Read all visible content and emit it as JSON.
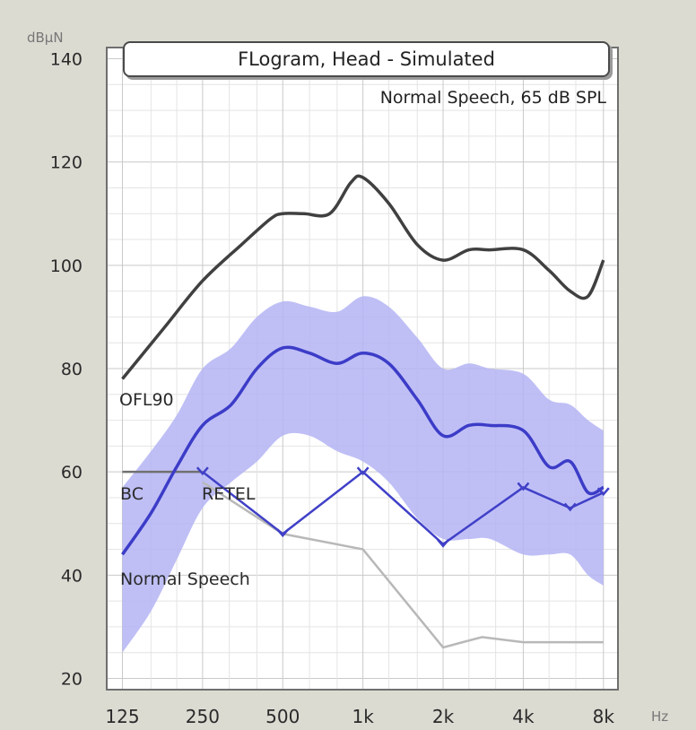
{
  "chart_data": {
    "type": "line",
    "title": "FLogram, Head - Simulated",
    "subtitle": "Normal Speech, 65 dB SPL",
    "ylabel": "dBµN",
    "xlabel": "Hz",
    "x_scale": "log",
    "ylim": [
      18,
      142
    ],
    "xlim": [
      110,
      9000
    ],
    "y_ticks": [
      20,
      40,
      60,
      80,
      100,
      120,
      140
    ],
    "x_ticks": [
      {
        "value": 125,
        "label": "125"
      },
      {
        "value": 250,
        "label": "250"
      },
      {
        "value": 500,
        "label": "500"
      },
      {
        "value": 1000,
        "label": "1k"
      },
      {
        "value": 2000,
        "label": "2k"
      },
      {
        "value": 4000,
        "label": "4k"
      },
      {
        "value": 8000,
        "label": "8k"
      }
    ],
    "grid": true,
    "colors": {
      "ofl90": "#404040",
      "speech_mean": "#3c3cc8",
      "speech_band": "#b4b4f5",
      "retel": "#4040c8",
      "bc": "#707070",
      "normal_speech": "#b8b8b8"
    },
    "series_labels": {
      "ofl90": "OFL90",
      "bc": "BC",
      "retel": "RETEL",
      "normal_speech": "Normal Speech"
    },
    "series": [
      {
        "key": "ofl90",
        "x": [
          125,
          180,
          250,
          350,
          450,
          500,
          600,
          750,
          900,
          1000,
          1250,
          1600,
          2000,
          2500,
          3000,
          4000,
          5000,
          6000,
          7000,
          8000
        ],
        "y": [
          78,
          88,
          97,
          104,
          109,
          110,
          110,
          110,
          116,
          117,
          112,
          104,
          101,
          103,
          103,
          103,
          99,
          95,
          94,
          101
        ]
      },
      {
        "key": "speech_mean",
        "x": [
          125,
          160,
          200,
          250,
          320,
          400,
          500,
          630,
          800,
          1000,
          1250,
          1600,
          2000,
          2500,
          3000,
          4000,
          5000,
          6000,
          7000,
          8000
        ],
        "y": [
          44,
          52,
          61,
          69,
          73,
          80,
          84,
          83,
          81,
          83,
          81,
          74,
          67,
          69,
          69,
          68,
          61,
          62,
          56,
          57
        ]
      },
      {
        "key": "speech_band_upper",
        "x": [
          125,
          160,
          200,
          250,
          320,
          400,
          500,
          630,
          800,
          1000,
          1250,
          1600,
          2000,
          2500,
          3000,
          4000,
          5000,
          6000,
          7000,
          8000
        ],
        "y": [
          57,
          64,
          71,
          80,
          84,
          90,
          93,
          92,
          91,
          94,
          92,
          86,
          80,
          81,
          80,
          79,
          74,
          73,
          70,
          68
        ]
      },
      {
        "key": "speech_band_lower",
        "x": [
          125,
          160,
          200,
          250,
          320,
          400,
          500,
          630,
          800,
          1000,
          1250,
          1600,
          2000,
          2500,
          3000,
          4000,
          5000,
          6000,
          7000,
          8000
        ],
        "y": [
          25,
          33,
          43,
          53,
          58,
          62,
          67,
          67,
          64,
          62,
          58,
          51,
          47,
          47,
          47,
          44,
          44,
          44,
          40,
          38
        ]
      },
      {
        "key": "bc",
        "x": [
          125,
          250
        ],
        "y": [
          60,
          60
        ]
      },
      {
        "key": "retel",
        "x": [
          250,
          500,
          1000,
          2000,
          4000,
          6000,
          8000
        ],
        "y": [
          60,
          48,
          60,
          46,
          57,
          53,
          56
        ]
      },
      {
        "key": "normal_speech",
        "x": [
          250,
          500,
          1000,
          2000,
          2800,
          4000,
          8000
        ],
        "y": [
          58,
          48,
          45,
          26,
          28,
          27,
          27
        ]
      }
    ]
  }
}
